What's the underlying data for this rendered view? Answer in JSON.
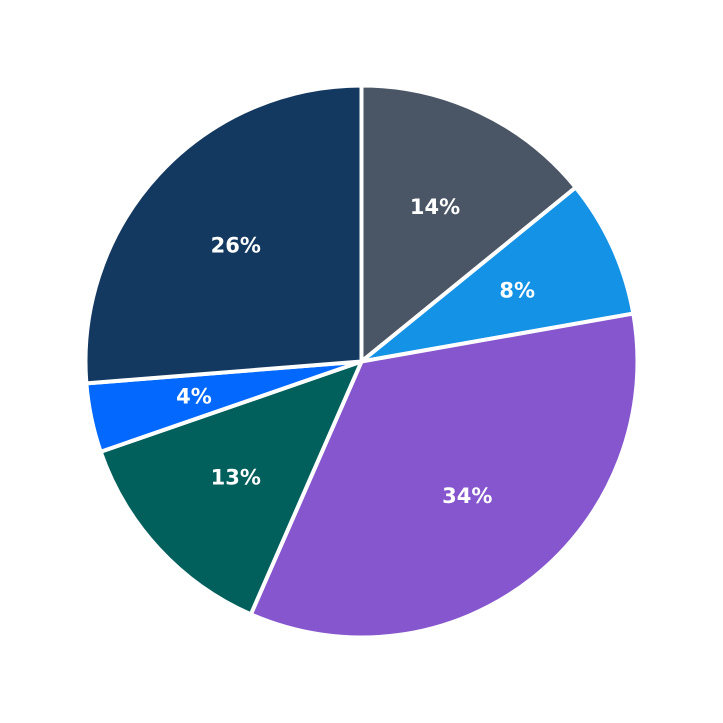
{
  "chart_data": {
    "type": "pie",
    "start": "top",
    "direction": "clockwise",
    "slices": [
      {
        "value": 14,
        "label": "14%",
        "color": "#4a5565"
      },
      {
        "value": 8,
        "label": "8%",
        "color": "#1492e6"
      },
      {
        "value": 34,
        "label": "34%",
        "color": "#8556cd"
      },
      {
        "value": 13,
        "label": "13%",
        "color": "#015f5c"
      },
      {
        "value": 4,
        "label": "4%",
        "color": "#0369fe"
      },
      {
        "value": 26,
        "label": "26%",
        "color": "#143961"
      }
    ]
  }
}
